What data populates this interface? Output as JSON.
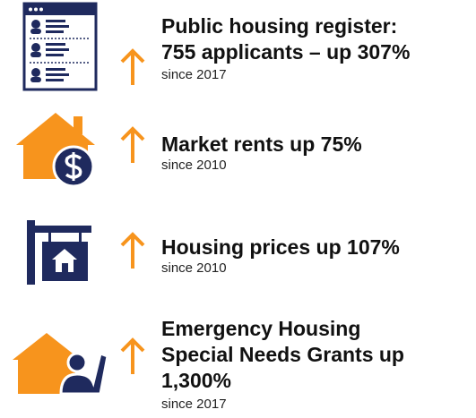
{
  "items": [
    {
      "headline": [
        "Public housing register:",
        "755 applicants – up 307%"
      ],
      "since": "since 2017"
    },
    {
      "headline": [
        "Market rents up 75%"
      ],
      "since": "since 2010"
    },
    {
      "headline": [
        "Housing prices up 107%"
      ],
      "since": "since 2010"
    },
    {
      "headline": [
        "Emergency Housing",
        "Special Needs Grants up",
        "1,300%"
      ],
      "since": "since 2017"
    }
  ]
}
